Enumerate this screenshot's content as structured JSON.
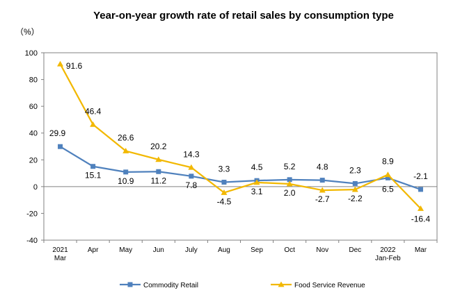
{
  "chart_data": {
    "type": "line",
    "title": "Year-on-year growth rate of retail sales by consumption type",
    "unit_label": "（%）",
    "categories": [
      {
        "lines": [
          "2021",
          "Mar"
        ]
      },
      {
        "lines": [
          "Apr"
        ]
      },
      {
        "lines": [
          "May"
        ]
      },
      {
        "lines": [
          "Jun"
        ]
      },
      {
        "lines": [
          "July"
        ]
      },
      {
        "lines": [
          "Aug"
        ]
      },
      {
        "lines": [
          "Sep"
        ]
      },
      {
        "lines": [
          "Oct"
        ]
      },
      {
        "lines": [
          "Nov"
        ]
      },
      {
        "lines": [
          "Dec"
        ]
      },
      {
        "lines": [
          "2022",
          "Jan-Feb"
        ]
      },
      {
        "lines": [
          "Mar"
        ]
      }
    ],
    "ylim": [
      -40,
      100
    ],
    "yticks": [
      "100",
      "80",
      "60",
      "40",
      "20",
      "0",
      "-20",
      "-40"
    ],
    "ytick_values": [
      100,
      80,
      60,
      40,
      20,
      0,
      -20,
      -40
    ],
    "series": [
      {
        "name": "Commodity Retail",
        "color": "#4F81BD",
        "marker": "square",
        "values": [
          29.9,
          15.1,
          10.9,
          11.2,
          7.8,
          3.3,
          4.5,
          5.2,
          4.8,
          2.3,
          6.5,
          -2.1
        ],
        "labels": [
          "29.9",
          "15.1",
          "10.9",
          "11.2",
          "7.8",
          "3.3",
          "4.5",
          "5.2",
          "4.8",
          "2.3",
          "6.5",
          "-2.1"
        ]
      },
      {
        "name": "Food Service Revenue",
        "color": "#F2B800",
        "marker": "triangle",
        "values": [
          91.6,
          46.4,
          26.6,
          20.2,
          14.3,
          -4.5,
          3.1,
          2.0,
          -2.7,
          -2.2,
          8.9,
          -16.4
        ],
        "labels": [
          "91.6",
          "46.4",
          "26.6",
          "20.2",
          "14.3",
          "-4.5",
          "3.1",
          "2.0",
          "-2.7",
          "-2.2",
          "8.9",
          "-16.4"
        ]
      }
    ],
    "legend_position": "bottom",
    "grid": false
  }
}
